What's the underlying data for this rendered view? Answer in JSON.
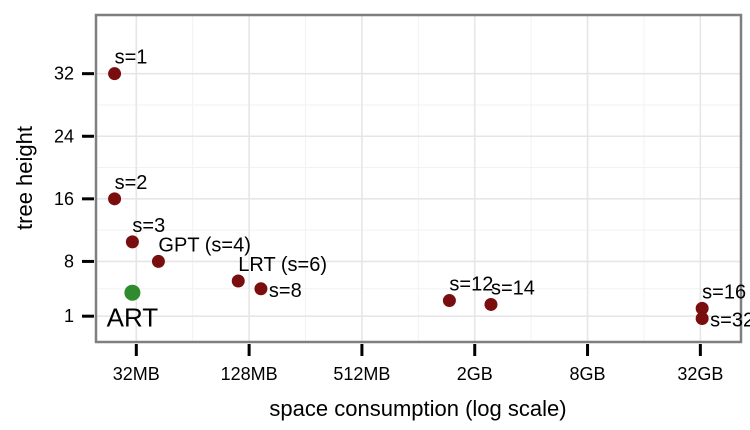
{
  "chart_data": {
    "type": "scatter",
    "xlabel": "space consumption (log scale)",
    "ylabel": "tree height",
    "x_scale": "log",
    "x_unit": "MB",
    "xlim": [
      19.5,
      54000
    ],
    "ylim": [
      -2.3,
      39.5
    ],
    "x_ticks": [
      {
        "value": 32,
        "label": "32MB"
      },
      {
        "value": 128,
        "label": "128MB"
      },
      {
        "value": 512,
        "label": "512MB"
      },
      {
        "value": 2048,
        "label": "2GB"
      },
      {
        "value": 8192,
        "label": "8GB"
      },
      {
        "value": 32768,
        "label": "32GB"
      }
    ],
    "y_ticks": [
      {
        "value": 1,
        "label": "1"
      },
      {
        "value": 8,
        "label": "8"
      },
      {
        "value": 16,
        "label": "16"
      },
      {
        "value": 24,
        "label": "24"
      },
      {
        "value": 32,
        "label": "32"
      }
    ],
    "grid": true,
    "series": [
      {
        "color": "#7a0d0d",
        "points": [
          {
            "x": 24.5,
            "y": 32,
            "label": "s=1",
            "label_pos": "above"
          },
          {
            "x": 24.5,
            "y": 16,
            "label": "s=2",
            "label_pos": "above"
          },
          {
            "x": 30.5,
            "y": 10.5,
            "label": "s=3",
            "label_pos": "above"
          },
          {
            "x": 42,
            "y": 8,
            "label": "GPT (s=4)",
            "label_pos": "above"
          },
          {
            "x": 112,
            "y": 5.5,
            "label": "LRT (s=6)",
            "label_pos": "above"
          },
          {
            "x": 148,
            "y": 4.5,
            "label": "s=8",
            "label_pos": "right"
          },
          {
            "x": 1500,
            "y": 3,
            "label": "s=12",
            "label_pos": "above"
          },
          {
            "x": 2500,
            "y": 2.5,
            "label": "s=14",
            "label_pos": "above"
          },
          {
            "x": 33500,
            "y": 2,
            "label": "s=16",
            "label_pos": "above"
          },
          {
            "x": 33500,
            "y": 0.7,
            "label": "s=32",
            "label_pos": "right"
          }
        ]
      },
      {
        "color": "#2e8b2e",
        "points": [
          {
            "x": 30.5,
            "y": 4,
            "label": "ART",
            "label_pos": "below"
          }
        ]
      }
    ]
  }
}
